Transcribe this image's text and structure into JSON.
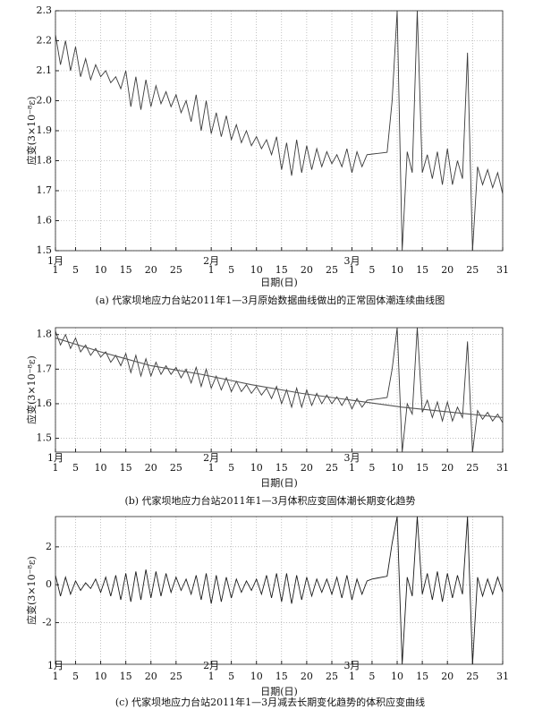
{
  "chart_data": [
    {
      "type": "line",
      "ylabel": "应变(3×10⁻⁸ε)",
      "xlabel": "日期(日)",
      "caption": "(a) 代家坝地应力台站2011年1—3月原始数据曲线做出的正常固体潮连续曲线图",
      "x": [
        1,
        2,
        3,
        4,
        5,
        6,
        7,
        8,
        9,
        10,
        11,
        12,
        13,
        14,
        15,
        16,
        17,
        18,
        19,
        20,
        21,
        22,
        23,
        24,
        25,
        26,
        27,
        28,
        29,
        30,
        31,
        32,
        33,
        34,
        35,
        36,
        37,
        38,
        39,
        40,
        41,
        42,
        43,
        44,
        45,
        46,
        47,
        48,
        49,
        50,
        51,
        52,
        53,
        54,
        55,
        56,
        57,
        58,
        59,
        60,
        61,
        62,
        63,
        64,
        65,
        66,
        67,
        68,
        69,
        70,
        71,
        72,
        73,
        74,
        75,
        76,
        77,
        78,
        79,
        80,
        81,
        82,
        83,
        84,
        85,
        86,
        87,
        88,
        89,
        90
      ],
      "series": [
        {
          "color": "#3a3a3a",
          "values": [
            2.22,
            2.12,
            2.2,
            2.1,
            2.18,
            2.08,
            2.14,
            2.07,
            2.12,
            2.08,
            2.1,
            2.06,
            2.08,
            2.04,
            2.1,
            1.98,
            2.08,
            1.97,
            2.07,
            1.98,
            2.05,
            1.99,
            2.03,
            1.98,
            2.02,
            1.96,
            2.0,
            1.93,
            2.02,
            1.9,
            2.0,
            1.89,
            1.96,
            1.88,
            1.95,
            1.87,
            1.92,
            1.86,
            1.9,
            1.85,
            1.88,
            1.84,
            1.87,
            1.82,
            1.88,
            1.77,
            1.86,
            1.75,
            1.87,
            1.76,
            1.85,
            1.77,
            1.84,
            1.78,
            1.83,
            1.79,
            1.82,
            1.78,
            1.84,
            1.76,
            1.83,
            1.78,
            1.82,
            1.822,
            1.824,
            1.826,
            1.828,
            2.0,
            2.3,
            1.5,
            1.83,
            1.76,
            2.3,
            1.76,
            1.82,
            1.74,
            1.83,
            1.72,
            1.84,
            1.72,
            1.8,
            1.74,
            2.16,
            1.5,
            1.78,
            1.72,
            1.77,
            1.71,
            1.76,
            1.69
          ]
        }
      ],
      "xlim": [
        1,
        90
      ],
      "ylim": [
        1.5,
        2.3
      ],
      "yticks": [
        1.5,
        1.6,
        1.7,
        1.8,
        1.9,
        {
          "value": 2,
          "label": "2.0"
        },
        2.1,
        2.2,
        2.3
      ],
      "xticks": [
        1,
        5,
        10,
        15,
        20,
        25,
        {
          "value": 32,
          "label": "1"
        },
        {
          "value": 36,
          "label": "5"
        },
        {
          "value": 41,
          "label": "10"
        },
        {
          "value": 46,
          "label": "15"
        },
        {
          "value": 51,
          "label": "20"
        },
        {
          "value": 56,
          "label": "25"
        },
        {
          "value": 60,
          "label": "1"
        },
        {
          "value": 64,
          "label": "5"
        },
        {
          "value": 69,
          "label": "10"
        },
        {
          "value": 74,
          "label": "15"
        },
        {
          "value": 79,
          "label": "20"
        },
        {
          "value": 84,
          "label": "25"
        },
        {
          "value": 90,
          "label": "31"
        }
      ],
      "month_labels": [
        {
          "value": 1,
          "label": "1月"
        },
        {
          "value": 32,
          "label": "2月"
        },
        {
          "value": 60,
          "label": "3月"
        }
      ],
      "grid": true
    },
    {
      "type": "line",
      "ylabel": "应变(3×10⁻⁸ε)",
      "xlabel": "日期(日)",
      "caption": "(b) 代家坝地应力台站2011年1—3月体积应变固体潮长期变化趋势",
      "x": [
        1,
        2,
        3,
        4,
        5,
        6,
        7,
        8,
        9,
        10,
        11,
        12,
        13,
        14,
        15,
        16,
        17,
        18,
        19,
        20,
        21,
        22,
        23,
        24,
        25,
        26,
        27,
        28,
        29,
        30,
        31,
        32,
        33,
        34,
        35,
        36,
        37,
        38,
        39,
        40,
        41,
        42,
        43,
        44,
        45,
        46,
        47,
        48,
        49,
        50,
        51,
        52,
        53,
        54,
        55,
        56,
        57,
        58,
        59,
        60,
        61,
        62,
        63,
        64,
        65,
        66,
        67,
        68,
        69,
        70,
        71,
        72,
        73,
        74,
        75,
        76,
        77,
        78,
        79,
        80,
        81,
        82,
        83,
        84,
        85,
        86,
        87,
        88,
        89,
        90
      ],
      "series": [
        {
          "color": "#3a3a3a",
          "values": [
            1.81,
            1.77,
            1.8,
            1.76,
            1.79,
            1.75,
            1.77,
            1.74,
            1.76,
            1.735,
            1.75,
            1.72,
            1.74,
            1.71,
            1.745,
            1.69,
            1.74,
            1.68,
            1.73,
            1.68,
            1.72,
            1.685,
            1.71,
            1.685,
            1.705,
            1.675,
            1.7,
            1.66,
            1.705,
            1.65,
            1.7,
            1.645,
            1.68,
            1.64,
            1.675,
            1.635,
            1.665,
            1.635,
            1.655,
            1.63,
            1.65,
            1.625,
            1.645,
            1.615,
            1.65,
            1.6,
            1.64,
            1.59,
            1.645,
            1.59,
            1.64,
            1.595,
            1.63,
            1.6,
            1.625,
            1.6,
            1.62,
            1.595,
            1.62,
            1.585,
            1.615,
            1.59,
            1.61,
            1.612,
            1.614,
            1.616,
            1.618,
            1.7,
            1.82,
            1.46,
            1.6,
            1.57,
            1.82,
            1.575,
            1.61,
            1.56,
            1.605,
            1.55,
            1.605,
            1.55,
            1.59,
            1.56,
            1.78,
            1.46,
            1.58,
            1.555,
            1.575,
            1.55,
            1.57,
            1.545
          ]
        },
        {
          "color": "#555555",
          "x": [
            1,
            10,
            20,
            30,
            40,
            50,
            60,
            70,
            80,
            90
          ],
          "values": [
            1.79,
            1.75,
            1.71,
            1.685,
            1.655,
            1.63,
            1.61,
            1.59,
            1.575,
            1.56
          ]
        }
      ],
      "xlim": [
        1,
        90
      ],
      "ylim": [
        1.46,
        1.82
      ],
      "yticks": [
        1.5,
        1.6,
        1.7,
        1.8
      ],
      "xticks": [
        1,
        5,
        10,
        15,
        20,
        25,
        {
          "value": 32,
          "label": "1"
        },
        {
          "value": 36,
          "label": "5"
        },
        {
          "value": 41,
          "label": "10"
        },
        {
          "value": 46,
          "label": "15"
        },
        {
          "value": 51,
          "label": "20"
        },
        {
          "value": 56,
          "label": "25"
        },
        {
          "value": 60,
          "label": "1"
        },
        {
          "value": 64,
          "label": "5"
        },
        {
          "value": 69,
          "label": "10"
        },
        {
          "value": 74,
          "label": "15"
        },
        {
          "value": 79,
          "label": "20"
        },
        {
          "value": 84,
          "label": "25"
        },
        {
          "value": 90,
          "label": "31"
        }
      ],
      "month_labels": [
        {
          "value": 1,
          "label": "1月"
        },
        {
          "value": 32,
          "label": "2月"
        },
        {
          "value": 60,
          "label": "3月"
        }
      ],
      "grid": true
    },
    {
      "type": "line",
      "ylabel": "应变(3×10⁻⁸ε)",
      "xlabel": "日期(日)",
      "caption": "(c) 代家坝地应力台站2011年1—3月减去长期变化趋势的体积应变曲线",
      "x": [
        1,
        2,
        3,
        4,
        5,
        6,
        7,
        8,
        9,
        10,
        11,
        12,
        13,
        14,
        15,
        16,
        17,
        18,
        19,
        20,
        21,
        22,
        23,
        24,
        25,
        26,
        27,
        28,
        29,
        30,
        31,
        32,
        33,
        34,
        35,
        36,
        37,
        38,
        39,
        40,
        41,
        42,
        43,
        44,
        45,
        46,
        47,
        48,
        49,
        50,
        51,
        52,
        53,
        54,
        55,
        56,
        57,
        58,
        59,
        60,
        61,
        62,
        63,
        64,
        65,
        66,
        67,
        68,
        69,
        70,
        71,
        72,
        73,
        74,
        75,
        76,
        77,
        78,
        79,
        80,
        81,
        82,
        83,
        84,
        85,
        86,
        87,
        88,
        89,
        90
      ],
      "series": [
        {
          "color": "#1a1a1a",
          "values": [
            0.5,
            -0.6,
            0.4,
            -0.5,
            0.2,
            -0.3,
            0.1,
            -0.2,
            0.3,
            -0.4,
            0.4,
            -0.6,
            0.5,
            -0.8,
            0.6,
            -0.9,
            0.7,
            -0.8,
            0.8,
            -0.7,
            0.7,
            -0.6,
            0.6,
            -0.4,
            0.4,
            -0.3,
            0.3,
            -0.5,
            0.5,
            -0.8,
            0.6,
            -1.0,
            0.5,
            -0.9,
            0.4,
            -0.7,
            0.3,
            -0.4,
            0.2,
            -0.3,
            0.3,
            -0.5,
            0.5,
            -0.7,
            0.6,
            -0.9,
            0.6,
            -1.0,
            0.5,
            -0.8,
            0.4,
            -0.6,
            0.3,
            -0.4,
            0.3,
            -0.5,
            0.4,
            -0.7,
            0.5,
            -0.8,
            0.3,
            -0.5,
            0.2,
            0.3,
            0.35,
            0.4,
            0.45,
            2.2,
            3.6,
            -4.2,
            0.4,
            -0.6,
            3.6,
            -0.5,
            0.6,
            -0.8,
            0.7,
            -0.9,
            0.6,
            -0.7,
            0.5,
            -0.5,
            3.6,
            -4.2,
            0.4,
            -0.6,
            0.3,
            -0.5,
            0.4,
            -0.4
          ]
        }
      ],
      "xlim": [
        1,
        90
      ],
      "ylim": [
        -4.2,
        3.6
      ],
      "yticks": [
        -2,
        0,
        2
      ],
      "xticks": [
        1,
        5,
        10,
        15,
        20,
        25,
        {
          "value": 32,
          "label": "1"
        },
        {
          "value": 36,
          "label": "5"
        },
        {
          "value": 41,
          "label": "10"
        },
        {
          "value": 46,
          "label": "15"
        },
        {
          "value": 51,
          "label": "20"
        },
        {
          "value": 56,
          "label": "25"
        },
        {
          "value": 60,
          "label": "1"
        },
        {
          "value": 64,
          "label": "5"
        },
        {
          "value": 69,
          "label": "10"
        },
        {
          "value": 74,
          "label": "15"
        },
        {
          "value": 79,
          "label": "20"
        },
        {
          "value": 84,
          "label": "25"
        },
        {
          "value": 90,
          "label": "31"
        }
      ],
      "month_labels": [
        {
          "value": 1,
          "label": "1月"
        },
        {
          "value": 32,
          "label": "2月"
        },
        {
          "value": 60,
          "label": "3月"
        }
      ],
      "grid": true
    }
  ]
}
